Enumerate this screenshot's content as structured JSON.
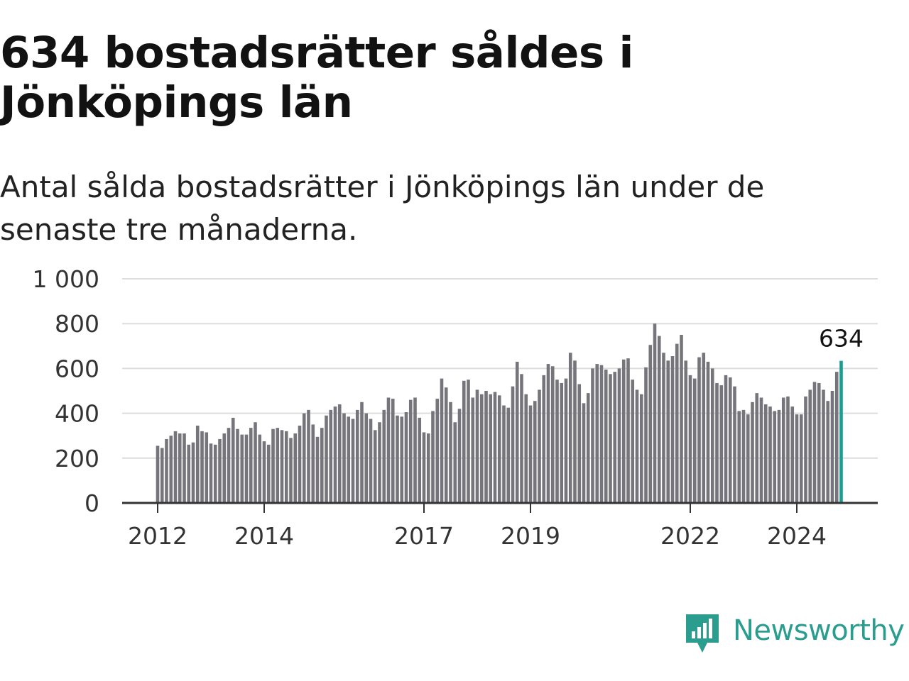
{
  "title": "634 bostadsrätter såldes i Jönköpings län",
  "subtitle": "Antal sålda bostadsrätter i Jönköpings län under de senaste tre månaderna.",
  "brand": {
    "name": "Newsworthy",
    "icon": "newsworthy-logo-icon",
    "color": "#2a9d8f"
  },
  "chart_data": {
    "type": "bar",
    "title": "",
    "xlabel": "",
    "ylabel": "",
    "ylim": [
      0,
      1000
    ],
    "y_ticks": [
      0,
      200,
      400,
      600,
      800,
      1000
    ],
    "y_tick_labels": [
      "0",
      "200",
      "400",
      "600",
      "800",
      "1 000"
    ],
    "x_tick_labels": [
      {
        "label": "2012",
        "index": 0
      },
      {
        "label": "2014",
        "index": 24
      },
      {
        "label": "2017",
        "index": 60
      },
      {
        "label": "2019",
        "index": 84
      },
      {
        "label": "2022",
        "index": 120
      },
      {
        "label": "2024",
        "index": 144
      }
    ],
    "grid": true,
    "bar_color": "#76757b",
    "highlight_color": "#1a9e92",
    "highlight_label": "634",
    "values": [
      255,
      245,
      285,
      300,
      320,
      310,
      310,
      260,
      270,
      345,
      320,
      315,
      265,
      260,
      285,
      310,
      335,
      380,
      330,
      305,
      305,
      335,
      360,
      305,
      275,
      260,
      330,
      335,
      325,
      320,
      290,
      310,
      345,
      400,
      415,
      350,
      295,
      335,
      390,
      415,
      430,
      440,
      400,
      385,
      375,
      415,
      450,
      400,
      375,
      325,
      360,
      415,
      470,
      465,
      390,
      385,
      405,
      460,
      470,
      380,
      315,
      310,
      410,
      465,
      555,
      515,
      450,
      360,
      420,
      545,
      550,
      470,
      505,
      485,
      500,
      485,
      495,
      480,
      435,
      425,
      520,
      630,
      575,
      485,
      435,
      455,
      505,
      570,
      620,
      610,
      550,
      535,
      555,
      670,
      635,
      530,
      445,
      490,
      600,
      620,
      615,
      595,
      575,
      585,
      600,
      640,
      645,
      550,
      505,
      485,
      605,
      705,
      800,
      745,
      670,
      635,
      655,
      710,
      750,
      635,
      570,
      555,
      650,
      670,
      630,
      600,
      535,
      525,
      570,
      560,
      520,
      410,
      415,
      395,
      450,
      490,
      470,
      440,
      430,
      410,
      415,
      470,
      475,
      430,
      395,
      395,
      475,
      505,
      540,
      535,
      505,
      455,
      500,
      585,
      634
    ]
  }
}
